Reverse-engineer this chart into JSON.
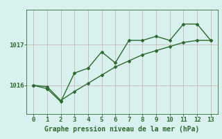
{
  "x": [
    0,
    1,
    2,
    3,
    4,
    5,
    6,
    7,
    8,
    9,
    10,
    11,
    12,
    13
  ],
  "line1": [
    1016.0,
    1015.92,
    1015.6,
    1016.3,
    1016.42,
    1016.82,
    1016.55,
    1017.1,
    1017.1,
    1017.2,
    1017.1,
    1017.5,
    1017.5,
    1017.1
  ],
  "line2": [
    1016.0,
    1015.97,
    1015.63,
    1015.85,
    1016.05,
    1016.25,
    1016.45,
    1016.6,
    1016.75,
    1016.85,
    1016.95,
    1017.05,
    1017.1,
    1017.1
  ],
  "line_color": "#2d6a2d",
  "background_color": "#d8f0ee",
  "grid_color_major": "#c0d8d4",
  "grid_color_minor": "#dce8e6",
  "xlabel": "Graphe pression niveau de la mer (hPa)",
  "xlabel_color": "#2d6a2d",
  "tick_color": "#2d6a2d",
  "yticks": [
    1016,
    1017
  ],
  "ylim": [
    1015.3,
    1017.85
  ],
  "xlim": [
    -0.5,
    13.5
  ]
}
